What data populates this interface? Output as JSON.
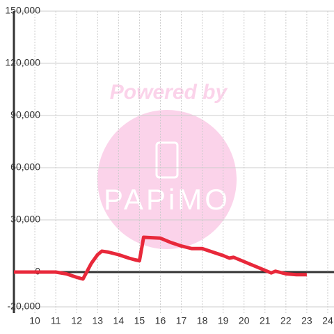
{
  "chart_data": {
    "type": "line",
    "watermark": {
      "text": "Powered by",
      "brand": "PAPiMO"
    },
    "x": [
      9,
      10,
      11,
      11.5,
      12,
      12.3,
      12.7,
      13,
      13.2,
      13.5,
      14,
      14.5,
      14.8,
      15,
      15.2,
      16,
      16.5,
      17,
      17.5,
      18,
      18.5,
      19,
      19.3,
      19.5,
      20,
      20.5,
      21,
      21.3,
      21.5,
      22,
      22.5,
      23
    ],
    "series": [
      {
        "color": "#e8283a",
        "values": [
          0,
          0,
          0,
          -1000,
          -3000,
          -4000,
          5000,
          10000,
          12000,
          11500,
          10000,
          8000,
          7000,
          6500,
          20000,
          19500,
          17000,
          15000,
          13500,
          13500,
          11500,
          9500,
          8000,
          8500,
          6000,
          3500,
          1000,
          -500,
          500,
          -1000,
          -1500,
          -1500
        ]
      }
    ],
    "xlim": [
      9,
      24.3
    ],
    "xticks": [
      10,
      11,
      12,
      13,
      14,
      15,
      16,
      17,
      18,
      19,
      20,
      21,
      22,
      23,
      24
    ],
    "ylim": [
      -20000,
      150000
    ],
    "yticks": [
      {
        "value": -20000,
        "label": "-20,000"
      },
      0,
      {
        "value": 30000,
        "label": "30,000"
      },
      {
        "value": 60000,
        "label": "60,000"
      },
      {
        "value": 90000,
        "label": "90,000"
      },
      {
        "value": 120000,
        "label": "120,000"
      },
      {
        "value": 150000,
        "label": "150,000"
      }
    ],
    "grid": true
  }
}
